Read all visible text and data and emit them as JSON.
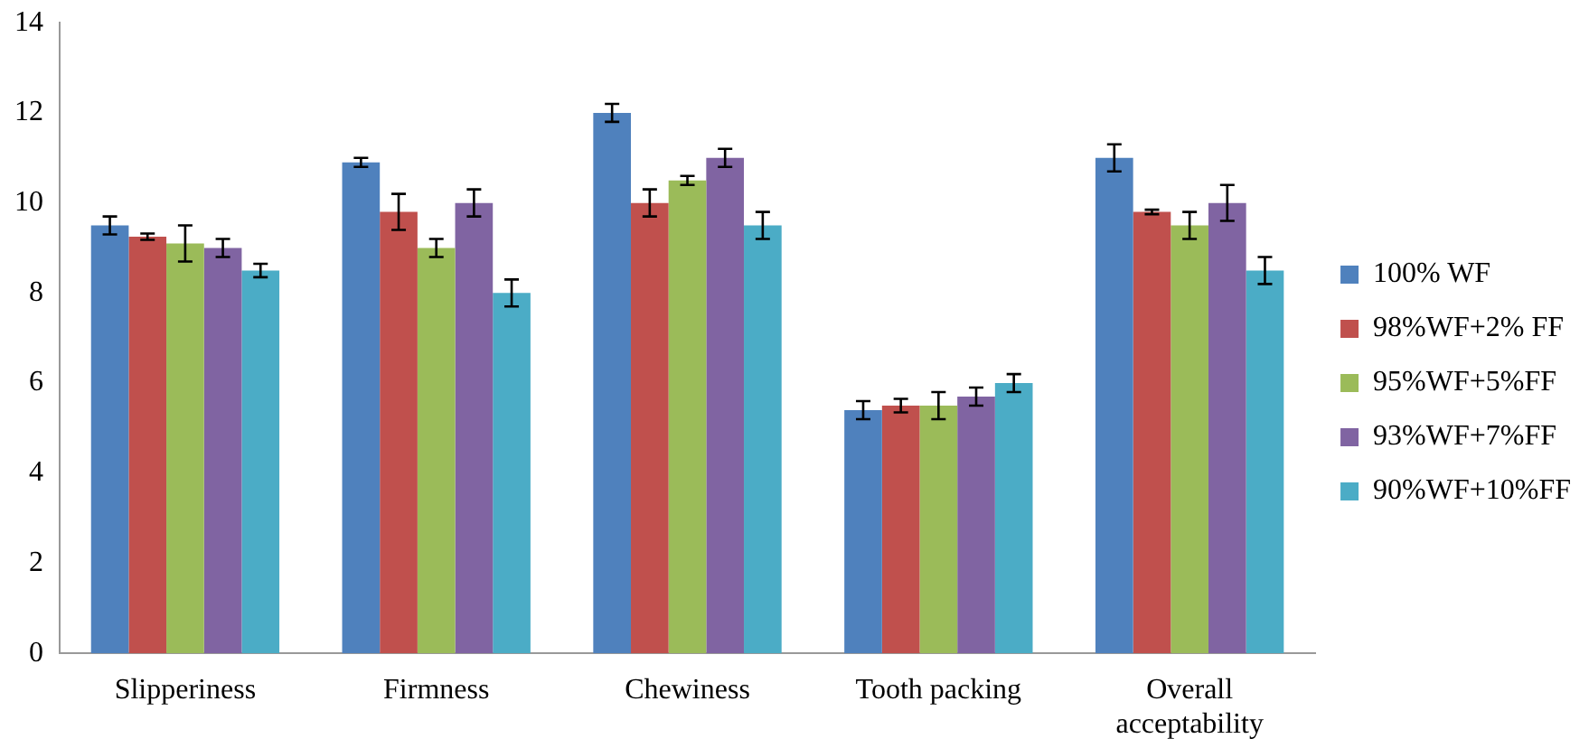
{
  "chart_data": {
    "type": "bar",
    "categories": [
      "Slipperiness",
      "Firmness",
      "Chewiness",
      "Tooth packing",
      "Overall acceptability"
    ],
    "series": [
      {
        "name": "100% WF",
        "color": "#4f81bd",
        "values": [
          9.5,
          10.9,
          12.0,
          5.4,
          11.0
        ],
        "errors": [
          0.2,
          0.1,
          0.2,
          0.2,
          0.3
        ]
      },
      {
        "name": "98%WF+2% FF",
        "color": "#c0504d",
        "values": [
          9.25,
          9.8,
          10.0,
          5.5,
          9.8
        ],
        "errors": [
          0.07,
          0.4,
          0.3,
          0.15,
          0.05
        ]
      },
      {
        "name": "95%WF+5%FF",
        "color": "#9bbb59",
        "values": [
          9.1,
          9.0,
          10.5,
          5.5,
          9.5
        ],
        "errors": [
          0.4,
          0.2,
          0.1,
          0.3,
          0.3
        ]
      },
      {
        "name": "93%WF+7%FF",
        "color": "#8064a2",
        "values": [
          9.0,
          10.0,
          11.0,
          5.7,
          10.0
        ],
        "errors": [
          0.2,
          0.3,
          0.2,
          0.2,
          0.4
        ]
      },
      {
        "name": "90%WF+10%FF",
        "color": "#4bacc6",
        "values": [
          8.5,
          8.0,
          9.5,
          6.0,
          8.5
        ],
        "errors": [
          0.15,
          0.3,
          0.3,
          0.2,
          0.3
        ]
      }
    ],
    "ylim": [
      0,
      14
    ],
    "yticks": [
      0,
      2,
      4,
      6,
      8,
      10,
      12,
      14
    ],
    "grid": false,
    "legend": "right"
  }
}
